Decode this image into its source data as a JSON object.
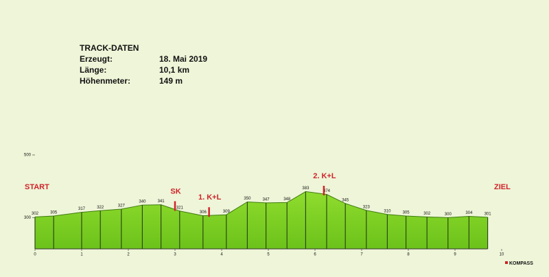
{
  "chart_data": {
    "type": "area",
    "info": {
      "title": "TRACK-DATEN",
      "rows": [
        [
          "Erzeugt:",
          "18. Mai 2019"
        ],
        [
          "Länge:",
          "10,1 km"
        ],
        [
          "Höhenmeter:",
          "149 m"
        ]
      ]
    },
    "start_label": "START",
    "end_label": "ZIEL",
    "x": [
      0,
      0.4,
      1.0,
      1.4,
      1.85,
      2.3,
      2.7,
      3.1,
      3.6,
      4.1,
      4.55,
      4.95,
      5.4,
      5.8,
      6.25,
      6.65,
      7.1,
      7.55,
      7.95,
      8.4,
      8.85,
      9.3,
      9.7
    ],
    "values": [
      302,
      305,
      317,
      322,
      327,
      340,
      341,
      321,
      306,
      309,
      350,
      347,
      348,
      383,
      374,
      345,
      323,
      310,
      305,
      302,
      300,
      304,
      301
    ],
    "color": "#7ed321",
    "xlim": [
      0,
      10
    ],
    "xticks": [
      0,
      1,
      2,
      3,
      4,
      5,
      6,
      7,
      8,
      9,
      10
    ],
    "ylim": [
      200,
      500
    ],
    "yticks": [
      300,
      500
    ],
    "markers": [
      {
        "label": "SK",
        "x": 3.0
      },
      {
        "label": "1. K+L",
        "x": 3.73
      },
      {
        "label": "2. K+L",
        "x": 6.19
      }
    ],
    "logo": "KOMPASS"
  }
}
